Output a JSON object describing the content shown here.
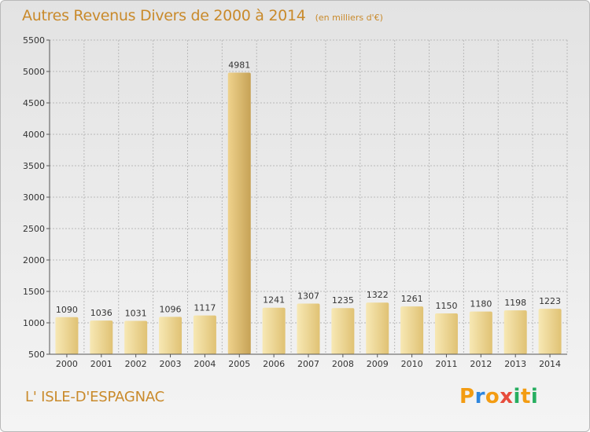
{
  "title": "Autres Revenus Divers de 2000 à 2014",
  "subtitle": "(en milliers d'€)",
  "location": "L' ISLE-D'ESPAGNAC",
  "brand": {
    "letters": [
      "P",
      "r",
      "o",
      "x",
      "i",
      "t",
      "i"
    ],
    "colors": [
      "#f39c12",
      "#2e86de",
      "#f39c12",
      "#e74c3c",
      "#27ae60",
      "#f39c12",
      "#27ae60"
    ]
  },
  "colors": {
    "accent": "#c98a2b",
    "bar_light": "#f7e8b4",
    "bar_dark": "#e0c274",
    "bar_highlight_light": "#efd28c",
    "bar_highlight_dark": "#c6a256",
    "grid": "#b9b9b9"
  },
  "chart_data": {
    "type": "bar",
    "title": "Autres Revenus Divers de 2000 à 2014",
    "subtitle": "(en milliers d'€)",
    "xlabel": "",
    "ylabel": "",
    "ylim": [
      500,
      5500
    ],
    "yticks": [
      500,
      1000,
      1500,
      2000,
      2500,
      3000,
      3500,
      4000,
      4500,
      5000,
      5500
    ],
    "grid": true,
    "highlighted_category": "2005",
    "categories": [
      "2000",
      "2001",
      "2002",
      "2003",
      "2004",
      "2005",
      "2006",
      "2007",
      "2008",
      "2009",
      "2010",
      "2011",
      "2012",
      "2013",
      "2014"
    ],
    "values": [
      1090,
      1036,
      1031,
      1096,
      1117,
      4981,
      1241,
      1307,
      1235,
      1322,
      1261,
      1150,
      1180,
      1198,
      1223
    ]
  }
}
